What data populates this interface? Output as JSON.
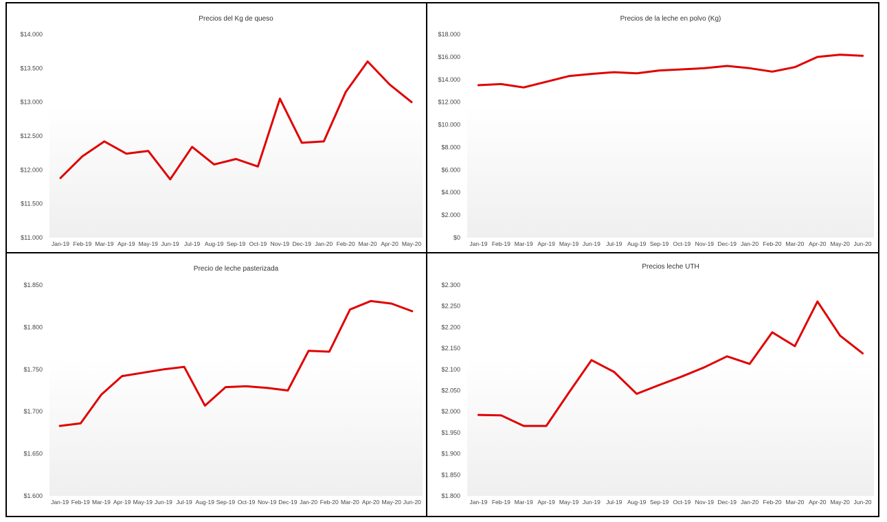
{
  "chart_data": [
    {
      "type": "line",
      "title": "Precios del Kg de queso",
      "categories": [
        "Jan-19",
        "Feb-19",
        "Mar-19",
        "Apr-19",
        "May-19",
        "Jun-19",
        "Jul-19",
        "Aug-19",
        "Sep-19",
        "Oct-19",
        "Nov-19",
        "Dec-19",
        "Jan-20",
        "Feb-20",
        "Mar-20",
        "Apr-20",
        "May-20"
      ],
      "series": [
        {
          "values": [
            11880,
            12200,
            12420,
            12240,
            12280,
            11860,
            12340,
            12080,
            12160,
            12050,
            13050,
            12400,
            12420,
            13150,
            13600,
            13260,
            13000
          ]
        }
      ],
      "ylim": [
        11000,
        14000
      ],
      "yticks": [
        "$11.000",
        "$11.500",
        "$12.000",
        "$12.500",
        "$13.000",
        "$13.500",
        "$14.000"
      ],
      "grid": false,
      "color": "#e00000"
    },
    {
      "type": "line",
      "title": "Precios de la leche en polvo (Kg)",
      "categories": [
        "Jan-19",
        "Feb-19",
        "Mar-19",
        "Apr-19",
        "May-19",
        "Jun-19",
        "Jul-19",
        "Aug-19",
        "Sep-19",
        "Oct-19",
        "Nov-19",
        "Dec-19",
        "Jan-20",
        "Feb-20",
        "Mar-20",
        "Apr-20",
        "May-20",
        "Jun-20"
      ],
      "series": [
        {
          "values": [
            13500,
            13600,
            13300,
            13800,
            14300,
            14500,
            14650,
            14550,
            14800,
            14900,
            15000,
            15200,
            15000,
            14700,
            15100,
            16000,
            16200,
            16100
          ]
        }
      ],
      "ylim": [
        0,
        18000
      ],
      "yticks": [
        "$0",
        "$2.000",
        "$4.000",
        "$6.000",
        "$8.000",
        "10.000",
        "12.000",
        "14.000",
        "16.000",
        "18.000"
      ],
      "ytick_labels": [
        "$0",
        "$2.000",
        "$4.000",
        "$6.000",
        "$8.000",
        "$10.000",
        "$12.000",
        "$14.000",
        "$16.000",
        "$18.000"
      ],
      "grid": false,
      "color": "#e00000"
    },
    {
      "type": "line",
      "title": "Precio de leche pasterizada",
      "categories": [
        "Jan-19",
        "Feb-19",
        "Mar-19",
        "Apr-19",
        "May-19",
        "Jun-19",
        "Jul-19",
        "Aug-19",
        "Sep-19",
        "Oct-19",
        "Nov-19",
        "Dec-19",
        "Jan-20",
        "Feb-20",
        "Mar-20",
        "Apr-20",
        "May-20",
        "Jun-20"
      ],
      "series": [
        {
          "values": [
            1683,
            1686,
            1720,
            1742,
            1746,
            1750,
            1753,
            1707,
            1729,
            1730,
            1728,
            1725,
            1772,
            1771,
            1821,
            1831,
            1828,
            1819
          ]
        }
      ],
      "ylim": [
        1600,
        1850
      ],
      "ytick_labels": [
        "$1.600",
        "$1.650",
        "$1.700",
        "$1.750",
        "$1.800",
        "$1.850"
      ],
      "grid": false,
      "color": "#e00000"
    },
    {
      "type": "line",
      "title": "Precios leche UTH",
      "categories": [
        "Jan-19",
        "Feb-19",
        "Mar-19",
        "Apr-19",
        "May-19",
        "Jun-19",
        "Jul-19",
        "Aug-19",
        "Sep-19",
        "Oct-19",
        "Nov-19",
        "Dec-19",
        "Jan-20",
        "Feb-20",
        "Mar-20",
        "Apr-20",
        "May-20",
        "Jun-20"
      ],
      "series": [
        {
          "values": [
            1992,
            1991,
            1966,
            1966,
            2045,
            2122,
            2094,
            2042,
            2063,
            2083,
            2105,
            2131,
            2113,
            2188,
            2155,
            2261,
            2180,
            2138
          ]
        }
      ],
      "ylim": [
        1800,
        2300
      ],
      "ytick_labels": [
        "$1.800",
        "$1.850",
        "$1.900",
        "$1.950",
        "$2.000",
        "$2.050",
        "$2.100",
        "$2.150",
        "$2.200",
        "$2.250",
        "$2.300"
      ],
      "grid": false,
      "color": "#e00000"
    }
  ]
}
